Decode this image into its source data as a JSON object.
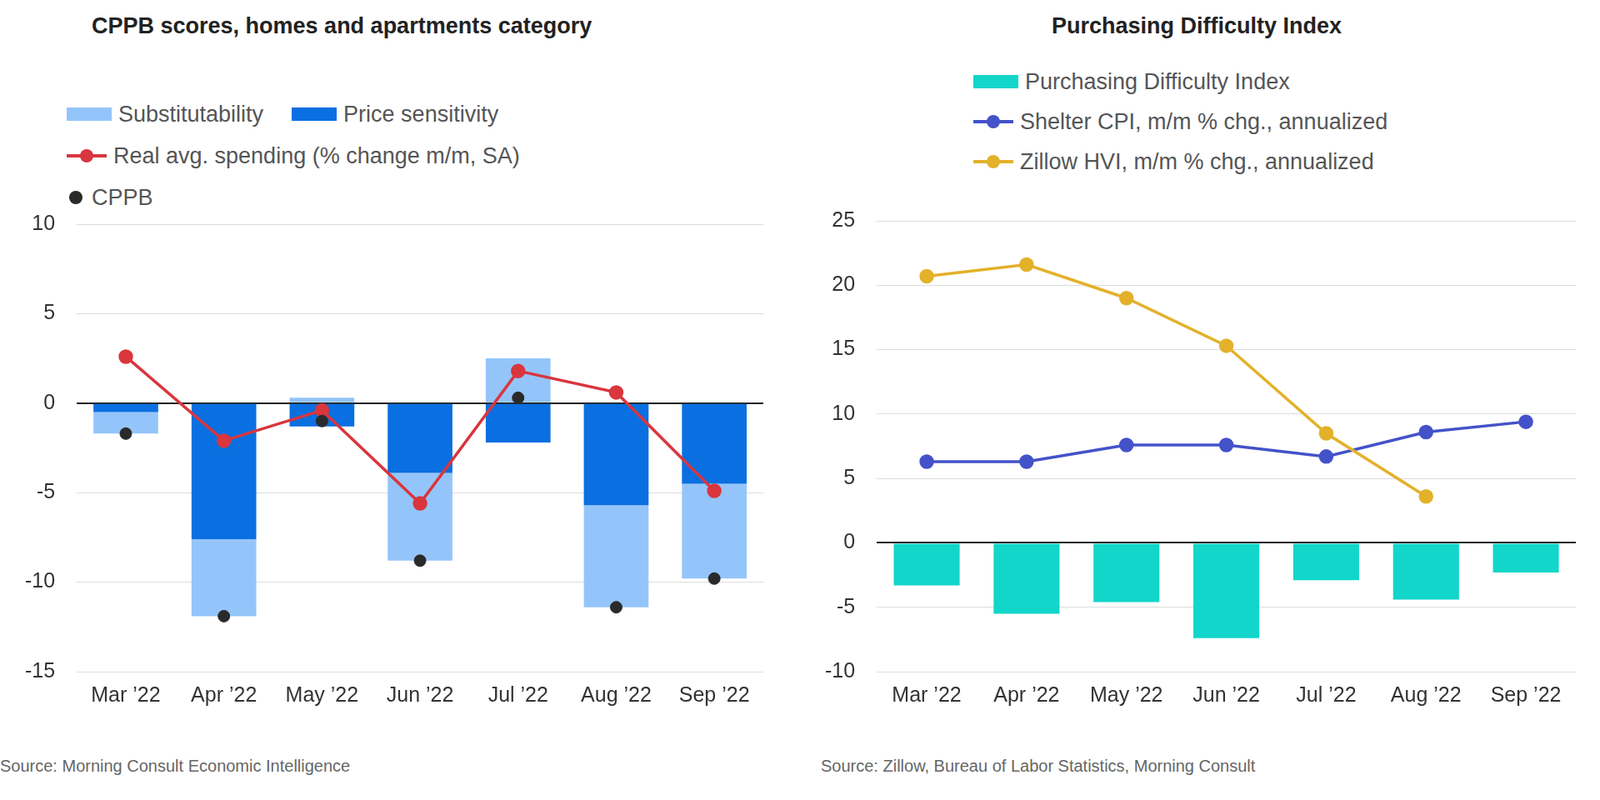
{
  "chart_data": [
    {
      "type": "bar",
      "title": "CPPB scores, homes and apartments category",
      "source": "Source: Morning Consult Economic Intelligence",
      "categories": [
        "Mar ’22",
        "Apr ’22",
        "May ’22",
        "Jun ’22",
        "Jul ’22",
        "Aug ’22",
        "Sep ’22"
      ],
      "series": [
        {
          "name": "Substitutability",
          "type": "bar",
          "color": "#94c5fa",
          "values": [
            -1.2,
            -4.3,
            0.3,
            -4.9,
            2.5,
            -5.7,
            -5.3
          ]
        },
        {
          "name": "Price sensitivity",
          "type": "bar",
          "color": "#0a6fe0",
          "values": [
            -0.5,
            -7.6,
            -1.3,
            -3.9,
            -2.2,
            -5.7,
            -4.5
          ]
        },
        {
          "name": "Real avg. spending (% change m/m, SA)",
          "type": "line",
          "color": "#d9363e",
          "marker": "circle",
          "line_style": "solid",
          "values": [
            2.6,
            -2.1,
            -0.4,
            -5.6,
            1.8,
            0.6,
            -4.9
          ]
        },
        {
          "name": "CPPB",
          "type": "scatter",
          "color": "#2a2a2a",
          "marker": "circle",
          "values": [
            -1.7,
            -11.9,
            -1.0,
            -8.8,
            0.3,
            -11.4,
            -9.8
          ]
        }
      ],
      "stacked": true,
      "ylim": [
        -15,
        10
      ],
      "yticks": [
        -15,
        -10,
        -5,
        0,
        5,
        10
      ],
      "grid": true,
      "legend": "top"
    },
    {
      "type": "bar",
      "title": "Purchasing Difficulty Index",
      "source": "Source: Zillow, Bureau of Labor Statistics, Morning Consult",
      "categories": [
        "Mar ’22",
        "Apr ’22",
        "May ’22",
        "Jun ’22",
        "Jul ’22",
        "Aug ’22",
        "Sep ’22"
      ],
      "series": [
        {
          "name": "Purchasing Difficulty Index",
          "type": "bar",
          "color": "#12d6c9",
          "values": [
            -3.3,
            -5.5,
            -4.6,
            -7.4,
            -2.9,
            -4.4,
            -2.3
          ]
        },
        {
          "name": "Shelter CPI, m/m % chg., annualized",
          "type": "line",
          "color": "#4452c9",
          "marker": "circle",
          "line_style": "solid",
          "values": [
            6.3,
            6.3,
            7.6,
            7.6,
            6.7,
            8.6,
            9.4
          ]
        },
        {
          "name": "Zillow HVI, m/m % chg., annualized",
          "type": "line",
          "color": "#e3b12a",
          "marker": "circle",
          "line_style": "solid",
          "values": [
            20.7,
            21.6,
            19.0,
            15.3,
            8.5,
            3.6,
            null
          ]
        }
      ],
      "stacked": false,
      "ylim": [
        -10,
        25
      ],
      "yticks": [
        -10,
        -5,
        0,
        5,
        10,
        15,
        20,
        25
      ],
      "grid": true,
      "legend": "top"
    }
  ]
}
